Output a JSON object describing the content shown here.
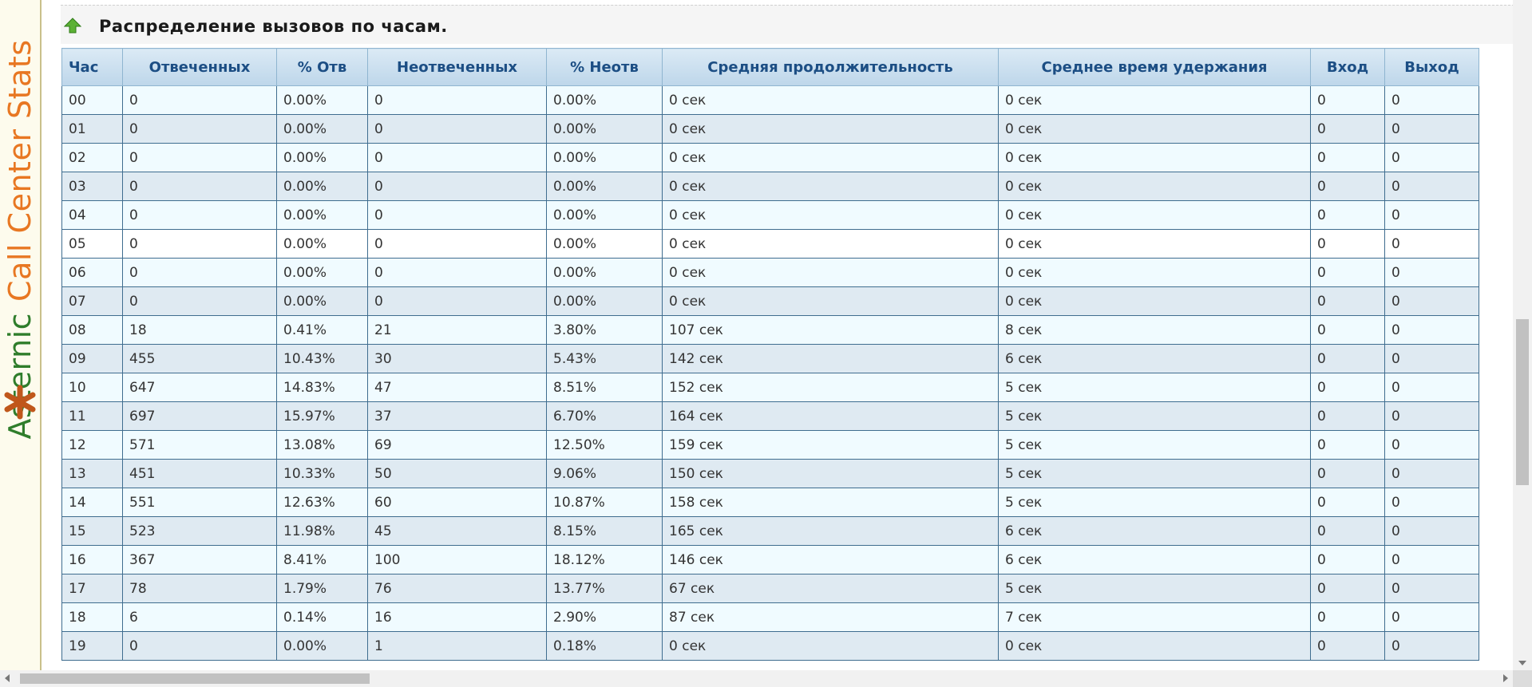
{
  "brand": {
    "part1": "Asternic",
    "part2": "Call Center Stats",
    "color_green": "#2f7d2b",
    "color_orange": "#e87722"
  },
  "section": {
    "title": "Распределение вызовов по часам.",
    "icon": "green-up-arrow-icon"
  },
  "table": {
    "columns": [
      "Час",
      "Отвеченных",
      "% Отв",
      "Неотвеченных",
      "% Неотв",
      "Средняя продолжительность",
      "Среднее время удержания",
      "Вход",
      "Выход"
    ],
    "rows": [
      [
        "00",
        "0",
        "0.00%",
        "0",
        "0.00%",
        "0 сек",
        "0 сек",
        "0",
        "0"
      ],
      [
        "01",
        "0",
        "0.00%",
        "0",
        "0.00%",
        "0 сек",
        "0 сек",
        "0",
        "0"
      ],
      [
        "02",
        "0",
        "0.00%",
        "0",
        "0.00%",
        "0 сек",
        "0 сек",
        "0",
        "0"
      ],
      [
        "03",
        "0",
        "0.00%",
        "0",
        "0.00%",
        "0 сек",
        "0 сек",
        "0",
        "0"
      ],
      [
        "04",
        "0",
        "0.00%",
        "0",
        "0.00%",
        "0 сек",
        "0 сек",
        "0",
        "0"
      ],
      [
        "05",
        "0",
        "0.00%",
        "0",
        "0.00%",
        "0 сек",
        "0 сек",
        "0",
        "0"
      ],
      [
        "06",
        "0",
        "0.00%",
        "0",
        "0.00%",
        "0 сек",
        "0 сек",
        "0",
        "0"
      ],
      [
        "07",
        "0",
        "0.00%",
        "0",
        "0.00%",
        "0 сек",
        "0 сек",
        "0",
        "0"
      ],
      [
        "08",
        "18",
        "0.41%",
        "21",
        "3.80%",
        "107 сек",
        "8 сек",
        "0",
        "0"
      ],
      [
        "09",
        "455",
        "10.43%",
        "30",
        "5.43%",
        "142 сек",
        "6 сек",
        "0",
        "0"
      ],
      [
        "10",
        "647",
        "14.83%",
        "47",
        "8.51%",
        "152 сек",
        "5 сек",
        "0",
        "0"
      ],
      [
        "11",
        "697",
        "15.97%",
        "37",
        "6.70%",
        "164 сек",
        "5 сек",
        "0",
        "0"
      ],
      [
        "12",
        "571",
        "13.08%",
        "69",
        "12.50%",
        "159 сек",
        "5 сек",
        "0",
        "0"
      ],
      [
        "13",
        "451",
        "10.33%",
        "50",
        "9.06%",
        "150 сек",
        "5 сек",
        "0",
        "0"
      ],
      [
        "14",
        "551",
        "12.63%",
        "60",
        "10.87%",
        "158 сек",
        "5 сек",
        "0",
        "0"
      ],
      [
        "15",
        "523",
        "11.98%",
        "45",
        "8.15%",
        "165 сек",
        "6 сек",
        "0",
        "0"
      ],
      [
        "16",
        "367",
        "8.41%",
        "100",
        "18.12%",
        "146 сек",
        "6 сек",
        "0",
        "0"
      ],
      [
        "17",
        "78",
        "1.79%",
        "76",
        "13.77%",
        "67 сек",
        "5 сек",
        "0",
        "0"
      ],
      [
        "18",
        "6",
        "0.14%",
        "16",
        "2.90%",
        "87 сек",
        "7 сек",
        "0",
        "0"
      ],
      [
        "19",
        "0",
        "0.00%",
        "1",
        "0.18%",
        "0 сек",
        "0 сек",
        "0",
        "0"
      ]
    ]
  }
}
